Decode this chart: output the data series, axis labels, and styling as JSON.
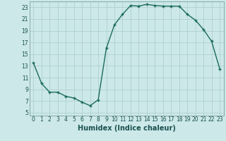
{
  "x": [
    0,
    1,
    2,
    3,
    4,
    5,
    6,
    7,
    8,
    9,
    10,
    11,
    12,
    13,
    14,
    15,
    16,
    17,
    18,
    19,
    20,
    21,
    22,
    23
  ],
  "y": [
    13.5,
    10.0,
    8.5,
    8.5,
    7.8,
    7.5,
    6.8,
    6.2,
    7.2,
    16.0,
    20.0,
    21.8,
    23.3,
    23.2,
    23.5,
    23.3,
    23.2,
    23.2,
    23.2,
    21.8,
    20.8,
    19.2,
    17.2,
    12.5
  ],
  "line_color": "#1a6b5a",
  "marker": "+",
  "markersize": 3.5,
  "linewidth": 1.0,
  "bg_color": "#cce8e8",
  "grid_color": "#aacccc",
  "xlabel": "Humidex (Indice chaleur)",
  "xlabel_fontsize": 7,
  "ylabel_ticks": [
    5,
    7,
    9,
    11,
    13,
    15,
    17,
    19,
    21,
    23
  ],
  "xlim": [
    -0.5,
    23.5
  ],
  "ylim": [
    4.5,
    24.0
  ],
  "xtick_labels": [
    "0",
    "1",
    "2",
    "3",
    "4",
    "5",
    "6",
    "7",
    "8",
    "9",
    "10",
    "11",
    "12",
    "13",
    "14",
    "15",
    "16",
    "17",
    "18",
    "19",
    "20",
    "21",
    "22",
    "23"
  ],
  "tick_fontsize": 5.5,
  "label_color": "#1a5050"
}
